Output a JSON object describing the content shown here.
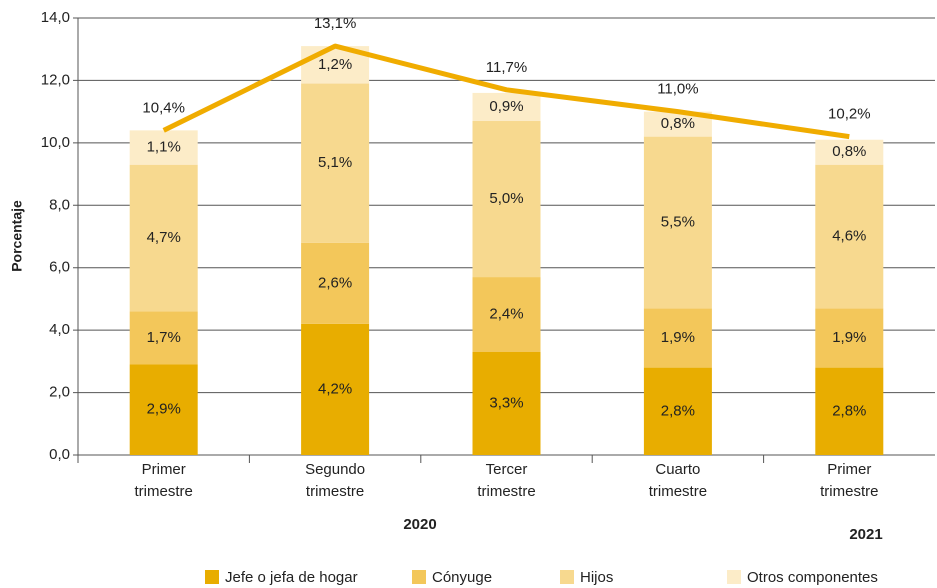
{
  "chart_data": {
    "type": "stacked_bar_line",
    "y_label": "Porcentaje",
    "categories": [
      "Primer trimestre",
      "Segundo trimestre",
      "Tercer trimestre",
      "Cuarto trimestre",
      "Primer trimestre"
    ],
    "year_labels": [
      "2020",
      "2021"
    ],
    "ylim": [
      0,
      14
    ],
    "yticks": [
      {
        "value": 0,
        "label": "0,0"
      },
      {
        "value": 2,
        "label": "2,0"
      },
      {
        "value": 4,
        "label": "4,0"
      },
      {
        "value": 6,
        "label": "6,0"
      },
      {
        "value": 8,
        "label": "8,0"
      },
      {
        "value": 10,
        "label": "10,0"
      },
      {
        "value": 12,
        "label": "12,0"
      },
      {
        "value": 14,
        "label": "14,0"
      }
    ],
    "grid": true,
    "series": [
      {
        "name": "Jefe o jefa de hogar",
        "color": "#e8ad00",
        "values": [
          2.9,
          4.2,
          3.3,
          2.8,
          2.8
        ],
        "value_labels": [
          "2,9%",
          "4,2%",
          "3,3%",
          "2,8%",
          "2,8%"
        ]
      },
      {
        "name": "Cónyuge",
        "color": "#f3c75a",
        "values": [
          1.7,
          2.6,
          2.4,
          1.9,
          1.9
        ],
        "value_labels": [
          "1,7%",
          "2,6%",
          "2,4%",
          "1,9%",
          "1,9%"
        ]
      },
      {
        "name": "Hijos",
        "color": "#f7d98f",
        "values": [
          4.7,
          5.1,
          5.0,
          5.5,
          4.6
        ],
        "value_labels": [
          "4,7%",
          "5,1%",
          "5,0%",
          "5,5%",
          "4,6%"
        ]
      },
      {
        "name": "Otros componentes",
        "color": "#fcecc8",
        "values": [
          1.1,
          1.2,
          0.9,
          0.8,
          0.8
        ],
        "value_labels": [
          "1,1%",
          "1,2%",
          "0,9%",
          "0,8%",
          "0,8%"
        ]
      }
    ],
    "total": {
      "color": "#f0ac00",
      "values": [
        10.4,
        13.1,
        11.7,
        11.0,
        10.2
      ],
      "value_labels": [
        "10,4%",
        "13,1%",
        "11,7%",
        "11,0%",
        "10,2%"
      ]
    }
  }
}
